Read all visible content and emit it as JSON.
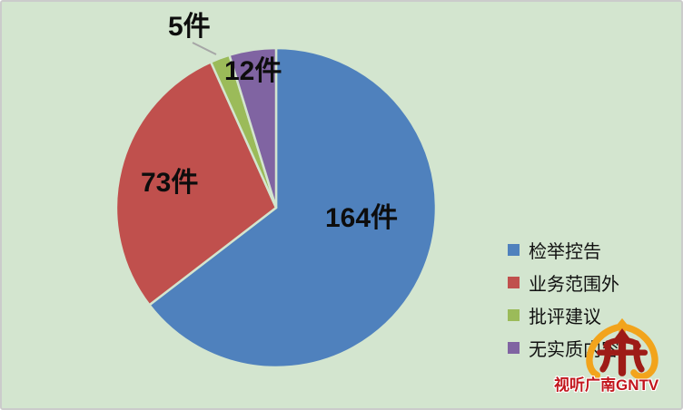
{
  "chart_data": {
    "type": "pie",
    "categories": [
      "检举控告",
      "业务范围外",
      "批评建议",
      "无实质内容"
    ],
    "values": [
      164,
      73,
      5,
      12
    ],
    "total": 254,
    "unit": "件",
    "data_labels": [
      "164件",
      "73件",
      "5件",
      "12件"
    ],
    "colors": [
      "#4f81bd",
      "#c0504d",
      "#9bbb59",
      "#8064a2"
    ],
    "background": "#d3e5cf",
    "start_angle_deg": 0,
    "direction": "clockwise",
    "legend_position": "right",
    "leader_line_color": "#a6a6a6",
    "title": ""
  },
  "legend": {
    "items": [
      {
        "label": "检举控告"
      },
      {
        "label": "业务范围外"
      },
      {
        "label": "批评建议"
      },
      {
        "label": "无实质内容"
      }
    ]
  },
  "watermark": {
    "text": "视听广南GNTV",
    "logo_name": "gntv-logo",
    "text_color": "#c2161d",
    "logo_orange": "#f2a41c",
    "logo_red": "#9e1c17"
  }
}
